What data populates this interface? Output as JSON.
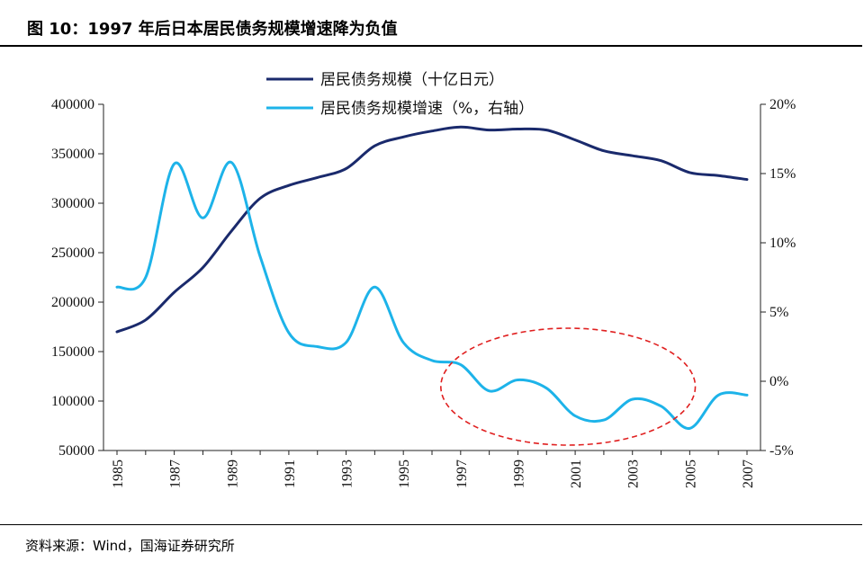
{
  "title": "图 10：1997 年后日本居民债务规模增速降为负值",
  "source": "资料来源：Wind，国海证券研究所",
  "colors": {
    "debt": "#1a2a6c",
    "growth": "#1db3e9",
    "highlight": "#e02020"
  },
  "chart_data": {
    "type": "line",
    "x": [
      1985,
      1986,
      1987,
      1988,
      1989,
      1990,
      1991,
      1992,
      1993,
      1994,
      1995,
      1996,
      1997,
      1998,
      1999,
      2000,
      2001,
      2002,
      2003,
      2004,
      2005,
      2006,
      2007
    ],
    "x_tick_labels": [
      "1985",
      "1987",
      "1989",
      "1991",
      "1993",
      "1995",
      "1997",
      "1999",
      "2001",
      "2003",
      "2005",
      "2007"
    ],
    "y_left": {
      "range": [
        50000,
        400000
      ],
      "ticks": [
        "400000",
        "350000",
        "300000",
        "250000",
        "200000",
        "150000",
        "100000",
        "50000"
      ]
    },
    "y_right": {
      "range": [
        -5,
        20
      ],
      "ticks": [
        "20%",
        "15%",
        "10%",
        "5%",
        "0%",
        "-5%"
      ]
    },
    "legend_position": "top-center",
    "series": [
      {
        "name": "居民债务规模（十亿日元）",
        "axis": "left",
        "values": [
          170000,
          182000,
          210000,
          235000,
          272000,
          305000,
          318000,
          326000,
          335000,
          358000,
          367000,
          373000,
          377000,
          374000,
          375000,
          374000,
          364000,
          353000,
          348000,
          343000,
          331000,
          328000,
          324000
        ]
      },
      {
        "name": "居民债务规模增速（%，右轴）",
        "axis": "right",
        "values": [
          6.8,
          7.5,
          15.7,
          11.8,
          15.8,
          9.0,
          3.5,
          2.5,
          2.8,
          6.8,
          2.8,
          1.5,
          1.2,
          -0.7,
          0.1,
          -0.5,
          -2.5,
          -2.8,
          -1.3,
          -1.8,
          -3.4,
          -1.0,
          -1.0
        ]
      }
    ],
    "annotations": [
      {
        "type": "dashed-ellipse",
        "from_x": 1997,
        "to_x": 2004
      }
    ]
  }
}
